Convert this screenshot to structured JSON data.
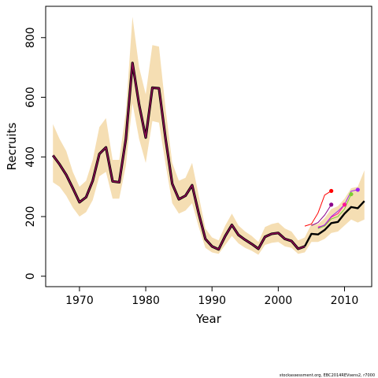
{
  "chart_data": {
    "type": "line",
    "xlabel": "Year",
    "ylabel": "Recruits",
    "xlim": [
      1964.9,
      2014.1
    ],
    "ylim": [
      -35,
      905
    ],
    "xticks": [
      1970,
      1980,
      1990,
      2000,
      2010
    ],
    "yticks": [
      0,
      200,
      400,
      600,
      800
    ],
    "colors": {
      "band": "#f5deb3",
      "final": "#000000",
      "retro": "#8b0a50",
      "accent_red": "#ff0000",
      "accent_pink": "#ff1493",
      "accent_purple": "#a020f0",
      "accent_green": "#7ccd32",
      "accent_magenta": "#8b008b"
    },
    "years": [
      1966,
      1967,
      1968,
      1969,
      1970,
      1971,
      1972,
      1973,
      1974,
      1975,
      1976,
      1977,
      1978,
      1979,
      1980,
      1981,
      1982,
      1983,
      1984,
      1985,
      1986,
      1987,
      1988,
      1989,
      1990,
      1991,
      1992,
      1993,
      1994,
      1995,
      1996,
      1997,
      1998,
      1999,
      2000,
      2001,
      2002,
      2003,
      2004,
      2005,
      2006,
      2007,
      2008,
      2009,
      2010,
      2011,
      2012,
      2013
    ],
    "recruits": [
      405,
      375,
      340,
      295,
      248,
      265,
      320,
      410,
      432,
      318,
      315,
      460,
      715,
      575,
      465,
      632,
      630,
      460,
      310,
      258,
      270,
      305,
      210,
      125,
      100,
      90,
      135,
      172,
      138,
      122,
      108,
      92,
      132,
      142,
      145,
      125,
      118,
      92,
      100,
      142,
      140,
      155,
      178,
      182,
      210,
      232,
      228,
      252
    ],
    "band_upper": [
      510,
      460,
      420,
      350,
      300,
      320,
      390,
      500,
      530,
      390,
      390,
      550,
      870,
      700,
      610,
      775,
      770,
      560,
      380,
      320,
      330,
      380,
      270,
      160,
      130,
      120,
      170,
      210,
      170,
      150,
      135,
      115,
      165,
      175,
      180,
      160,
      150,
      120,
      130,
      175,
      175,
      195,
      225,
      235,
      260,
      295,
      300,
      355
    ],
    "band_lower": [
      315,
      300,
      270,
      230,
      200,
      215,
      255,
      335,
      350,
      260,
      260,
      370,
      580,
      460,
      380,
      520,
      515,
      375,
      245,
      210,
      220,
      245,
      165,
      95,
      80,
      75,
      105,
      135,
      110,
      95,
      85,
      72,
      105,
      112,
      115,
      100,
      95,
      75,
      80,
      115,
      115,
      125,
      145,
      150,
      170,
      190,
      180,
      190
    ],
    "retro_peels": [
      {
        "end": 2008,
        "color": "#ff0000",
        "values": [
          168,
          175,
          212,
          272,
          286
        ]
      },
      {
        "end": 2010,
        "color": "#ff1493",
        "values": [
          165,
          170,
          198,
          210,
          240
        ]
      },
      {
        "end": 2008,
        "color": "#8b008b",
        "values": [
          170,
          180,
          205,
          240
        ]
      },
      {
        "end": 2011,
        "color": "#7ccd32",
        "values": [
          160,
          168,
          192,
          200,
          225,
          275
        ]
      },
      {
        "end": 2012,
        "color": "#a020f0",
        "values": [
          162,
          172,
          200,
          218,
          240,
          285,
          290
        ]
      }
    ]
  },
  "footer_text": "stockassessment.org, EBC2014REVsens2, r7000"
}
